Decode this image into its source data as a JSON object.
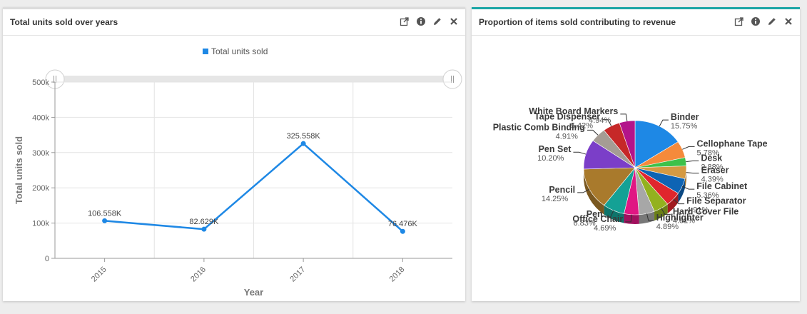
{
  "panels": {
    "left": {
      "title": "Total units sold over years"
    },
    "right": {
      "title": "Proportion of items sold contributing to revenue"
    }
  },
  "tool_icons": [
    "expand-icon",
    "info-icon",
    "edit-icon",
    "close-icon"
  ],
  "chart_data": [
    {
      "type": "line",
      "title": "",
      "legend": {
        "entries": [
          "Total units sold"
        ],
        "position": "top-center"
      },
      "xlabel": "Year",
      "ylabel": "Total units sold",
      "categories": [
        "2015",
        "2016",
        "2017",
        "2018"
      ],
      "series": [
        {
          "name": "Total units sold",
          "color": "#1e88e5",
          "values": [
            106558,
            82629,
            325558,
            76476
          ],
          "data_labels": [
            "106.558K",
            "82.629K",
            "325.558K",
            "76.476K"
          ]
        }
      ],
      "ylim": [
        0,
        500000
      ],
      "yticks": [
        0,
        100000,
        200000,
        300000,
        400000,
        500000
      ],
      "ytick_labels": [
        "0",
        "100k",
        "200k",
        "300k",
        "400k",
        "500k"
      ],
      "grid": true,
      "range_slider": true
    },
    {
      "type": "pie",
      "title": "",
      "three_d": true,
      "slices": [
        {
          "label": "Binder",
          "value": 15.75,
          "pct_label": "15.75%",
          "color": "#1e88e5"
        },
        {
          "label": "Cellophane Tape",
          "value": 5.78,
          "pct_label": "5.78%",
          "color": "#f58a3b"
        },
        {
          "label": "Desk",
          "value": 2.88,
          "pct_label": "2.88%",
          "color": "#3ec14a"
        },
        {
          "label": "Eraser",
          "value": 4.39,
          "pct_label": "4.39%",
          "color": "#d59a42"
        },
        {
          "label": "File Cabinet",
          "value": 5.36,
          "pct_label": "5.36%",
          "color": "#0e64b4"
        },
        {
          "label": "File Separator",
          "value": 4.91,
          "pct_label": "4.91%",
          "color": "#e0262d"
        },
        {
          "label": "Hard Cover File",
          "value": 4.81,
          "pct_label": "4.81%",
          "color": "#93b11f"
        },
        {
          "label": "Highlighter",
          "value": 4.89,
          "pct_label": "4.89%",
          "color": "#a7a7a7"
        },
        {
          "label": "Office Chair",
          "value": 4.69,
          "pct_label": "4.69%",
          "color": "#e01683"
        },
        {
          "label": "Pen",
          "value": 6.83,
          "pct_label": "6.83%",
          "color": "#14a195"
        },
        {
          "label": "Pencil",
          "value": 14.25,
          "pct_label": "14.25%",
          "color": "#a97a2c"
        },
        {
          "label": "Pen Set",
          "value": 10.2,
          "pct_label": "10.20%",
          "color": "#7b3ec8"
        },
        {
          "label": "Plastic Comb Binding",
          "value": 4.91,
          "pct_label": "4.91%",
          "color": "#a59c94"
        },
        {
          "label": "Tape Dispenser",
          "value": 5.42,
          "pct_label": "5.42%",
          "color": "#c62828"
        },
        {
          "label": "White Board Markers",
          "value": 4.94,
          "pct_label": "4.94%",
          "color": "#b3148a"
        }
      ]
    }
  ]
}
